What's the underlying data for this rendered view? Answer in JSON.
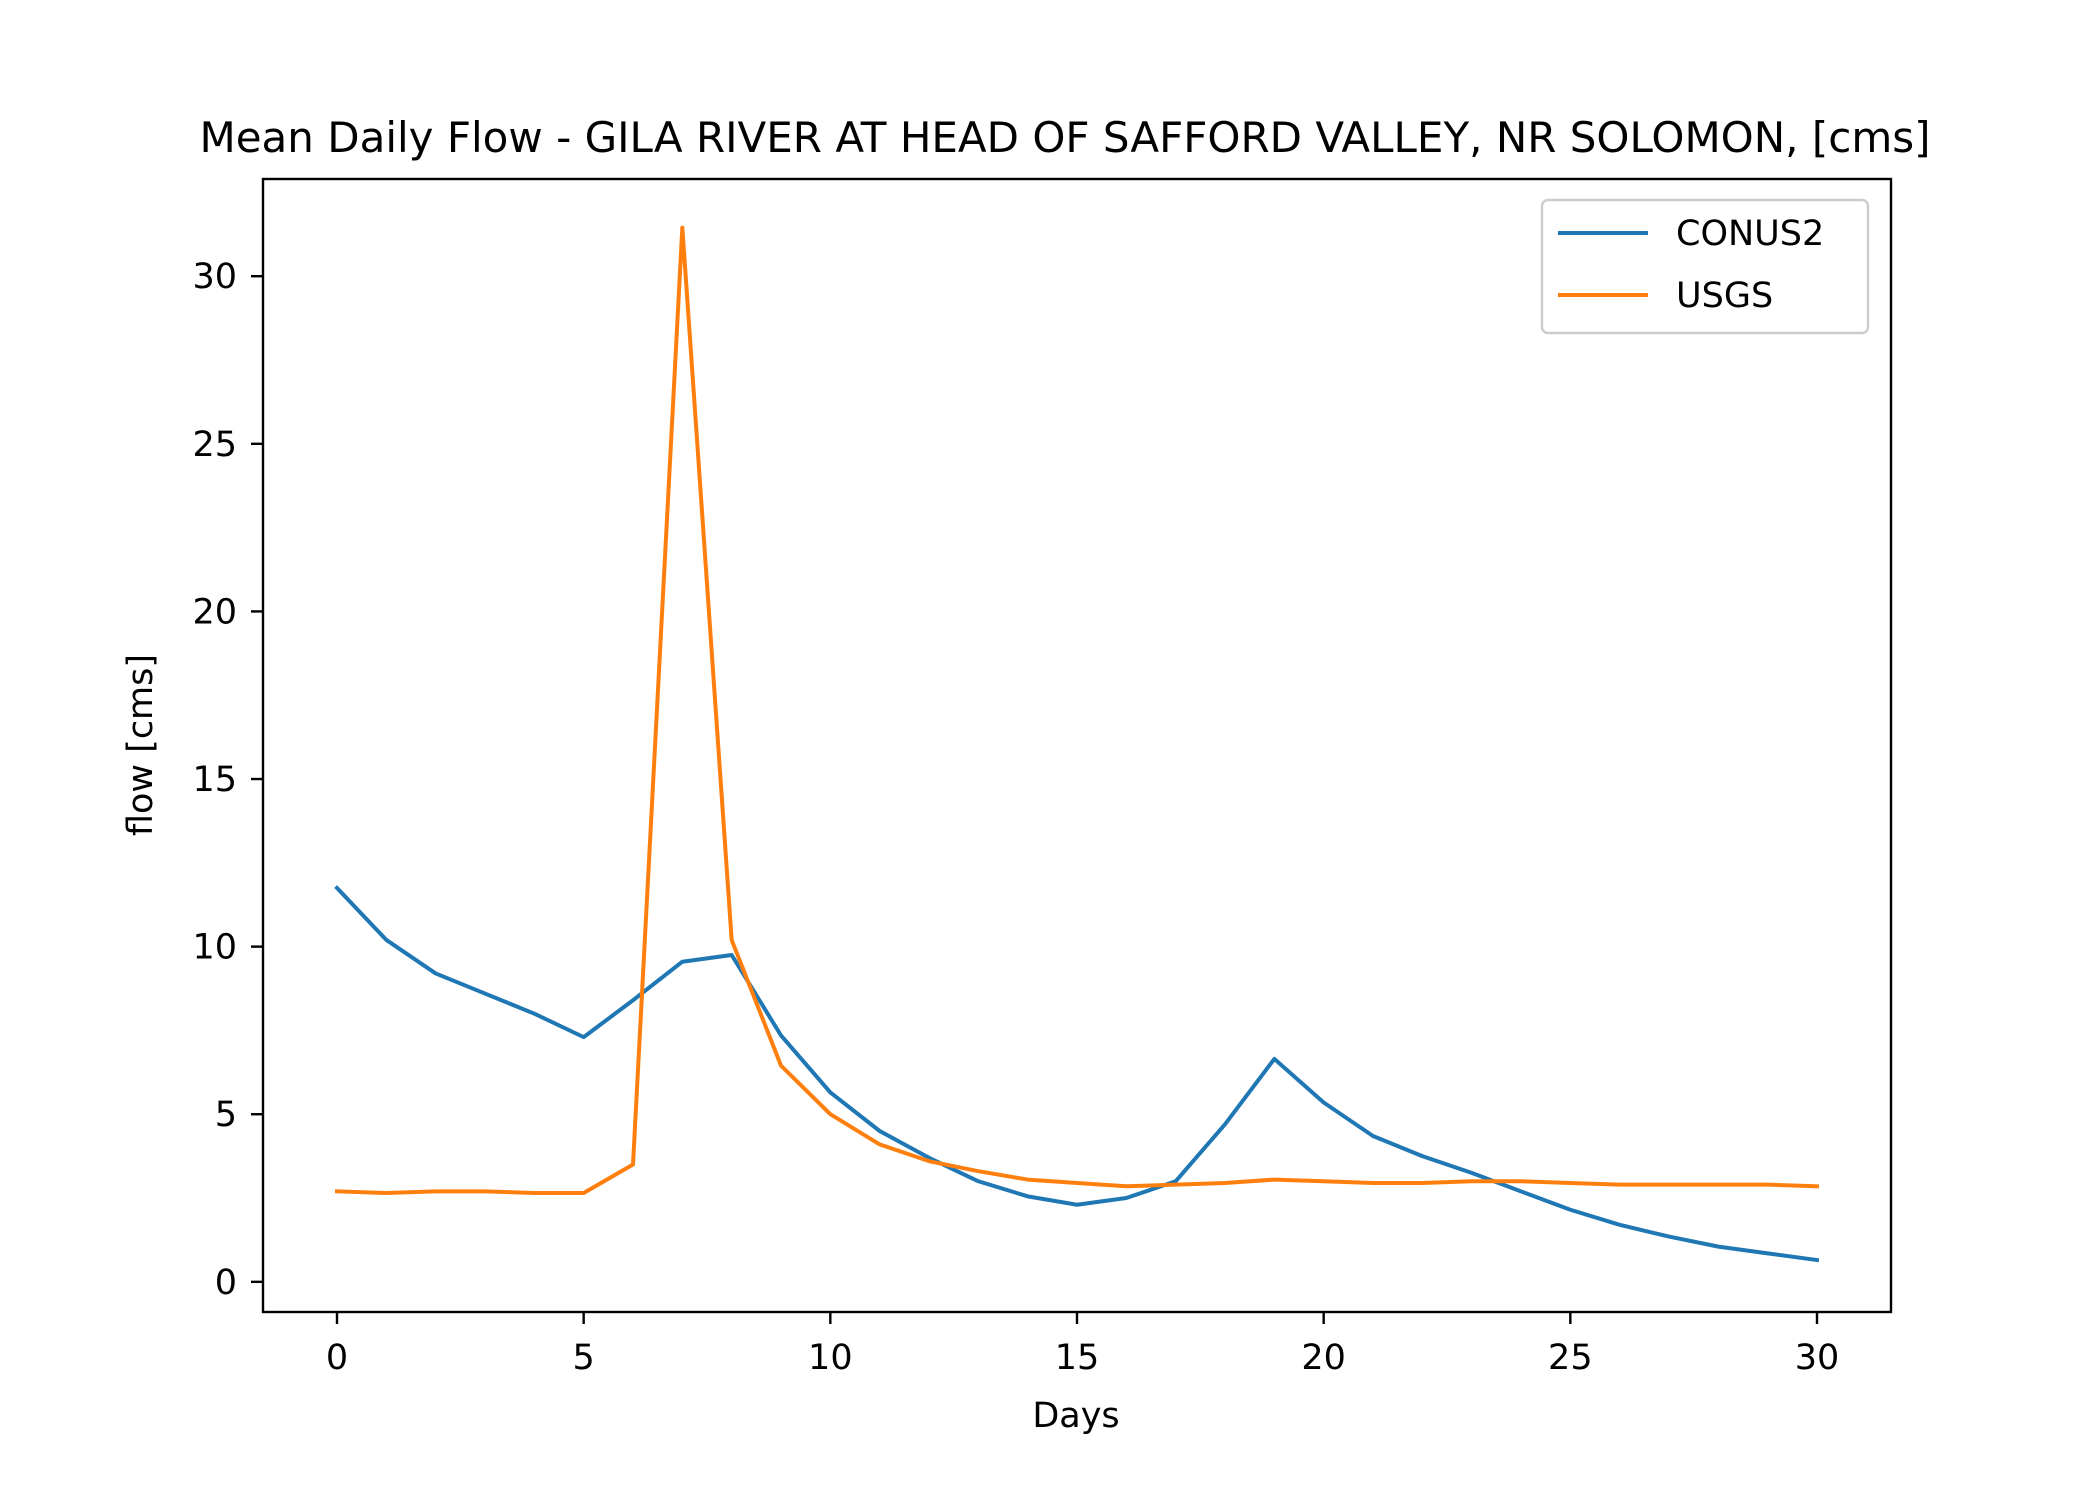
{
  "chart_data": {
    "type": "line",
    "title": "Mean Daily Flow - GILA RIVER AT HEAD OF SAFFORD VALLEY, NR SOLOMON, [cms]",
    "xlabel": "Days",
    "ylabel": "flow [cms]",
    "xlim": [
      -1.5,
      31.5
    ],
    "ylim": [
      -0.9,
      32.9
    ],
    "xticks": [
      0,
      5,
      10,
      15,
      20,
      25,
      30
    ],
    "yticks": [
      0,
      5,
      10,
      15,
      20,
      25,
      30
    ],
    "grid": false,
    "legend_position": "top-right",
    "x": [
      0,
      1,
      2,
      3,
      4,
      5,
      6,
      7,
      8,
      9,
      10,
      11,
      12,
      13,
      14,
      15,
      16,
      17,
      18,
      19,
      20,
      21,
      22,
      23,
      24,
      25,
      26,
      27,
      28,
      29,
      30
    ],
    "series": [
      {
        "name": "CONUS2",
        "color": "#1f77b4",
        "values": [
          11.75,
          10.2,
          9.2,
          8.6,
          8.0,
          7.3,
          8.4,
          9.55,
          9.75,
          7.35,
          5.65,
          4.5,
          3.7,
          3.0,
          2.55,
          2.3,
          2.5,
          3.0,
          4.7,
          6.65,
          5.35,
          4.35,
          3.75,
          3.25,
          2.7,
          2.15,
          1.7,
          1.35,
          1.05,
          0.85,
          0.65
        ]
      },
      {
        "name": "USGS",
        "color": "#ff7f0e",
        "values": [
          2.7,
          2.65,
          2.7,
          2.7,
          2.65,
          2.65,
          3.5,
          31.45,
          10.2,
          6.45,
          5.0,
          4.1,
          3.6,
          3.3,
          3.05,
          2.95,
          2.85,
          2.9,
          2.95,
          3.05,
          3.0,
          2.95,
          2.95,
          3.0,
          3.0,
          2.95,
          2.9,
          2.9,
          2.9,
          2.9,
          2.85
        ]
      }
    ]
  }
}
